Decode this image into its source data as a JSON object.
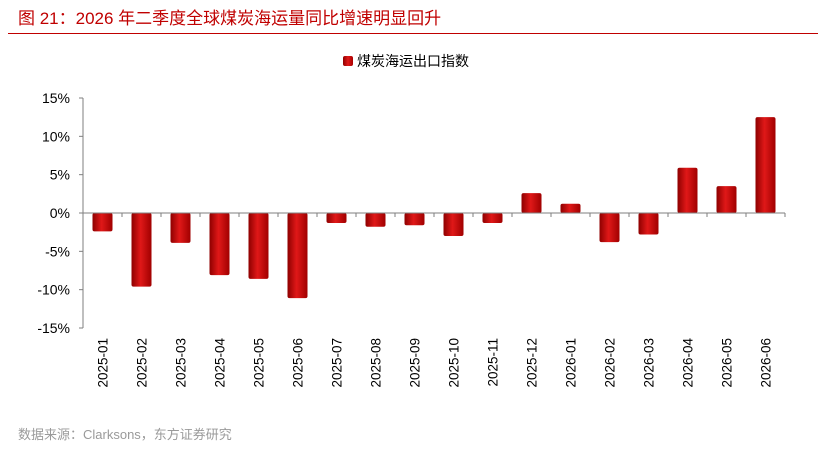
{
  "source": {
    "text": "数据来源：Clarksons，东方证券研究"
  },
  "colors": {
    "accent": "#C00000",
    "bar": "#C00000",
    "axis": "#7f7f7f"
  },
  "chart_data": {
    "type": "bar",
    "title": "图 21：2026 年二季度全球煤炭海运量同比增速明显回升",
    "xlabel": "",
    "ylabel": "",
    "categories": [
      "2025-01",
      "2025-02",
      "2025-03",
      "2025-04",
      "2025-05",
      "2025-06",
      "2025-07",
      "2025-08",
      "2025-09",
      "2025-10",
      "2025-11",
      "2025-12",
      "2026-01",
      "2026-02",
      "2026-03",
      "2026-04",
      "2026-05",
      "2026-06"
    ],
    "series": [
      {
        "name": "煤炭海运出口指数",
        "values": [
          -2.4,
          -9.6,
          -3.9,
          -8.1,
          -8.6,
          -11.1,
          -1.3,
          -1.8,
          -1.6,
          -3.0,
          -1.3,
          2.6,
          1.2,
          -3.8,
          -2.8,
          5.9,
          3.5,
          12.5
        ]
      }
    ],
    "ylim": [
      -15,
      15
    ],
    "yticks": [
      15,
      10,
      5,
      0,
      -5,
      -10,
      -15
    ],
    "ytick_labels": [
      "15%",
      "10%",
      "5%",
      "0%",
      "-5%",
      "-10%",
      "-15%"
    ],
    "grid": false,
    "legend": "top-center"
  }
}
